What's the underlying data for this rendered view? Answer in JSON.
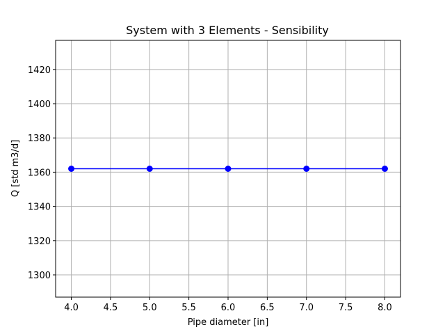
{
  "chart_data": {
    "type": "line",
    "title": "System with 3 Elements - Sensibility",
    "xlabel": "Pipe diameter [in]",
    "ylabel": "Q [std m3/d]",
    "x": [
      4.0,
      5.0,
      6.0,
      7.0,
      8.0
    ],
    "series": [
      {
        "values": [
          1362,
          1362,
          1362,
          1362,
          1362
        ],
        "color": "#0000ff",
        "marker": "circle"
      }
    ],
    "xlim": [
      3.8,
      8.2
    ],
    "ylim": [
      1287,
      1437
    ],
    "xticks": [
      4.0,
      4.5,
      5.0,
      5.5,
      6.0,
      6.5,
      7.0,
      7.5,
      8.0
    ],
    "xtick_labels": [
      "4.0",
      "4.5",
      "5.0",
      "5.5",
      "6.0",
      "6.5",
      "7.0",
      "7.5",
      "8.0"
    ],
    "yticks": [
      1300,
      1320,
      1340,
      1360,
      1380,
      1400,
      1420
    ],
    "ytick_labels": [
      "1300",
      "1320",
      "1340",
      "1360",
      "1380",
      "1400",
      "1420"
    ],
    "grid": true,
    "grid_color": "#b0b0b0"
  }
}
